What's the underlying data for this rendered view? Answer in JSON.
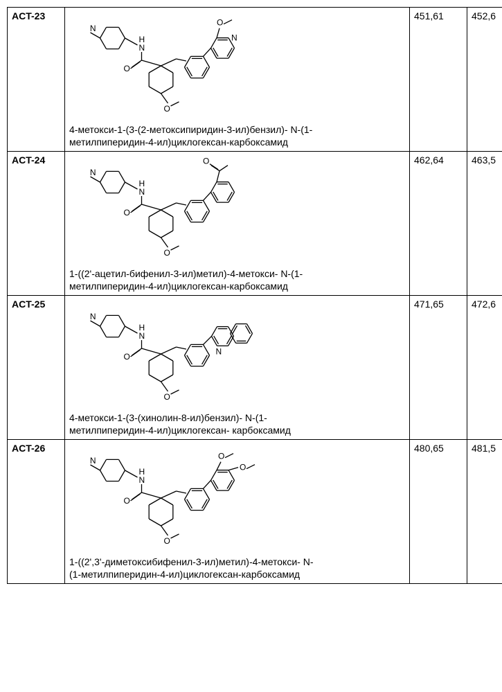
{
  "rows": [
    {
      "id": "ACT-23",
      "mw": "451,61",
      "ms": "452,6",
      "caption_l1": "4-метокси-1-(3-(2-метоксипиридин-3-ил)бензил)- N-(1-",
      "caption_l2": "метилпиперидин-4-ил)циклогексан-карбоксамид",
      "ring2_variant": "methoxypyridine"
    },
    {
      "id": "ACT-24",
      "mw": "462,64",
      "ms": "463,5",
      "caption_l1": "1-((2'-ацетил-бифенил-3-ил)метил)-4-метокси- N-(1-",
      "caption_l2": "метилпиперидин-4-ил)циклогексан-карбоксамид",
      "ring2_variant": "acetylphenyl"
    },
    {
      "id": "ACT-25",
      "mw": "471,65",
      "ms": "472,6",
      "caption_l1": "4-метокси-1-(3-(хинолин-8-ил)бензил)- N-(1-",
      "caption_l2": "метилпиперидин-4-ил)циклогексан- карбоксамид",
      "ring2_variant": "quinoline"
    },
    {
      "id": "ACT-26",
      "mw": "480,65",
      "ms": "481,5",
      "caption_l1": "1-((2',3'-диметоксибифенил-3-ил)метил)-4-метокси- N-",
      "caption_l2": "(1-метилпиперидин-4-ил)циклогексан-карбоксамид",
      "ring2_variant": "dimethoxyphenyl"
    }
  ]
}
